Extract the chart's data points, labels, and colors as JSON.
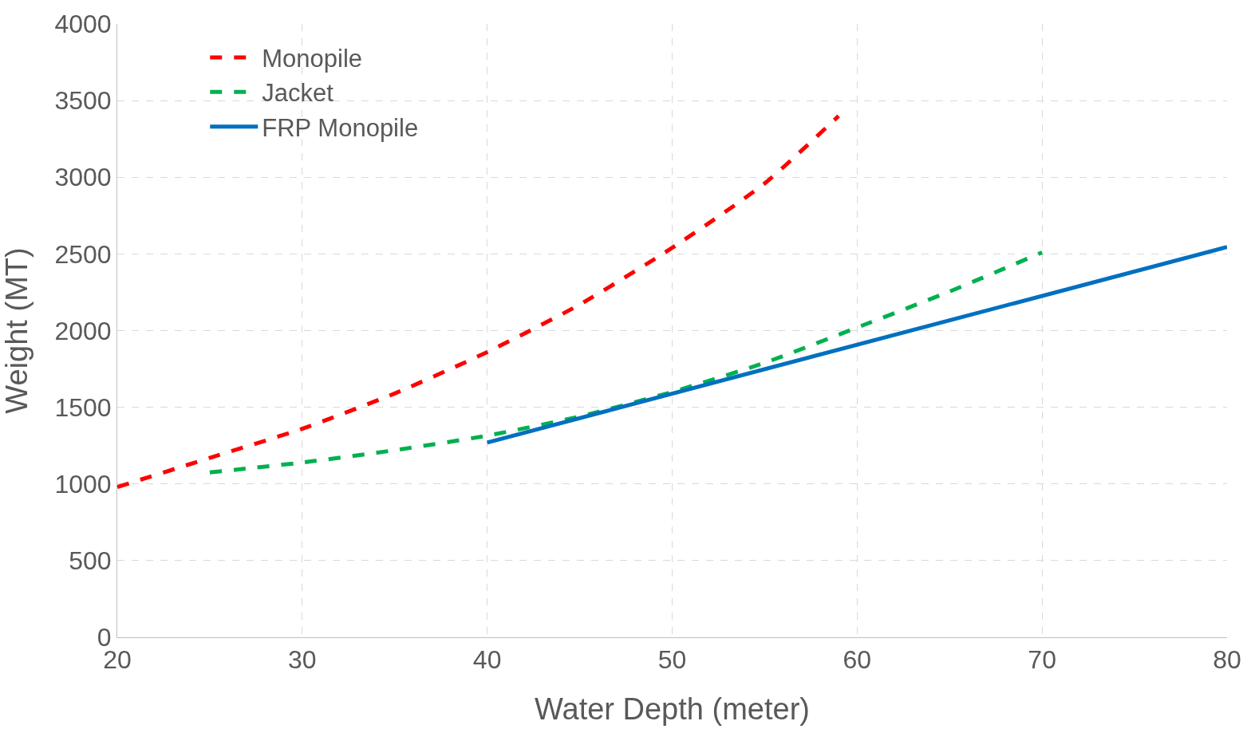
{
  "chart_data": {
    "type": "line",
    "xlabel": "Water Depth (meter)",
    "ylabel": "Weight (MT)",
    "xlim": [
      20,
      80
    ],
    "xticks": [
      20,
      30,
      40,
      50,
      60,
      70,
      80
    ],
    "ylim": [
      0,
      4000
    ],
    "yticks": [
      0,
      500,
      1000,
      1500,
      2000,
      2500,
      3000,
      3500,
      4000
    ],
    "grid": true,
    "legend": "top left",
    "marker": "none",
    "series": [
      {
        "name": "Monopile",
        "color": "#ff0000",
        "line_style": "dashed",
        "x": [
          20,
          25,
          30,
          35,
          40,
          45,
          50,
          55,
          59
        ],
        "values": [
          980,
          1170,
          1360,
          1590,
          1860,
          2170,
          2540,
          2960,
          3400
        ]
      },
      {
        "name": "Jacket",
        "color": "#00b050",
        "line_style": "dashed",
        "x": [
          25,
          30,
          35,
          40,
          45,
          50,
          55,
          60,
          65,
          70
        ],
        "values": [
          1075,
          1140,
          1220,
          1315,
          1440,
          1600,
          1790,
          2020,
          2255,
          2510
        ]
      },
      {
        "name": "FRP Monopile",
        "color": "#0070c0",
        "line_style": "solid",
        "x": [
          40,
          80
        ],
        "values": [
          1270,
          2545
        ]
      }
    ]
  }
}
